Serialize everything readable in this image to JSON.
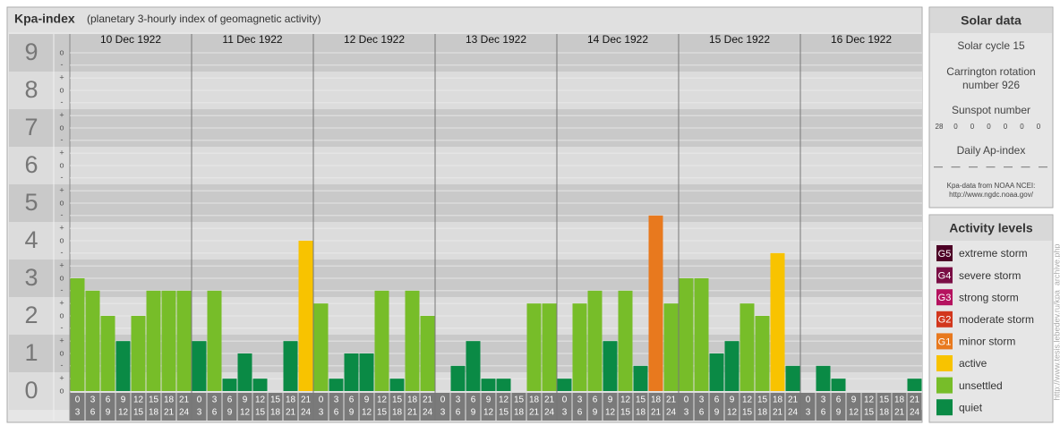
{
  "chart_data": {
    "type": "bar",
    "title": "Kpa-index",
    "subtitle": "(planetary 3-hourly index of geomagnetic activity)",
    "ylim": [
      0,
      9.5
    ],
    "yticks": [
      0,
      1,
      2,
      3,
      4,
      5,
      6,
      7,
      8,
      9
    ],
    "ysubticks": [
      {
        "value": 0,
        "label": "o"
      },
      {
        "value": 0.33,
        "label": "+"
      },
      {
        "value": 0.67,
        "label": "-"
      },
      {
        "value": 1,
        "label": "o"
      },
      {
        "value": 1.33,
        "label": "+"
      },
      {
        "value": 1.67,
        "label": "-"
      },
      {
        "value": 2,
        "label": "o"
      },
      {
        "value": 2.33,
        "label": "+"
      },
      {
        "value": 2.67,
        "label": "-"
      },
      {
        "value": 3,
        "label": "o"
      },
      {
        "value": 3.33,
        "label": "+"
      },
      {
        "value": 3.67,
        "label": "-"
      },
      {
        "value": 4,
        "label": "o"
      },
      {
        "value": 4.33,
        "label": "+"
      },
      {
        "value": 4.67,
        "label": "-"
      },
      {
        "value": 5,
        "label": "o"
      },
      {
        "value": 5.33,
        "label": "+"
      },
      {
        "value": 5.67,
        "label": "-"
      },
      {
        "value": 6,
        "label": "o"
      },
      {
        "value": 6.33,
        "label": "+"
      },
      {
        "value": 6.67,
        "label": "-"
      },
      {
        "value": 7,
        "label": "o"
      },
      {
        "value": 7.33,
        "label": "+"
      },
      {
        "value": 7.67,
        "label": "-"
      },
      {
        "value": 8,
        "label": "o"
      },
      {
        "value": 8.33,
        "label": "+"
      },
      {
        "value": 8.67,
        "label": "-"
      },
      {
        "value": 9,
        "label": "o"
      }
    ],
    "intervals": [
      [
        "0",
        "3"
      ],
      [
        "3",
        "6"
      ],
      [
        "6",
        "9"
      ],
      [
        "9",
        "12"
      ],
      [
        "12",
        "15"
      ],
      [
        "15",
        "18"
      ],
      [
        "18",
        "21"
      ],
      [
        "21",
        "24"
      ]
    ],
    "series": [
      {
        "name": "10 Dec 1922",
        "values": [
          3,
          2.67,
          2,
          1.33,
          2,
          2.67,
          2.67,
          2.67
        ],
        "colors": [
          "#77bd29",
          "#77bd29",
          "#77bd29",
          "#0a8a45",
          "#77bd29",
          "#77bd29",
          "#77bd29",
          "#77bd29"
        ]
      },
      {
        "name": "11 Dec 1922",
        "values": [
          1.33,
          2.67,
          0.33,
          1,
          0.33,
          0,
          1.33,
          4
        ],
        "colors": [
          "#0a8a45",
          "#77bd29",
          "#0a8a45",
          "#0a8a45",
          "#0a8a45",
          "#0a8a45",
          "#0a8a45",
          "#f8c300"
        ]
      },
      {
        "name": "12 Dec 1922",
        "values": [
          2.33,
          0.33,
          1,
          1,
          2.67,
          0.33,
          2.67,
          2
        ],
        "colors": [
          "#77bd29",
          "#0a8a45",
          "#0a8a45",
          "#0a8a45",
          "#77bd29",
          "#0a8a45",
          "#77bd29",
          "#77bd29"
        ]
      },
      {
        "name": "13 Dec 1922",
        "values": [
          0,
          0.67,
          1.33,
          0.33,
          0.33,
          0,
          2.33,
          2.33
        ],
        "colors": [
          "#0a8a45",
          "#0a8a45",
          "#0a8a45",
          "#0a8a45",
          "#0a8a45",
          "#0a8a45",
          "#77bd29",
          "#77bd29"
        ]
      },
      {
        "name": "14 Dec 1922",
        "values": [
          0.33,
          2.33,
          2.67,
          1.33,
          2.67,
          0.67,
          4.67,
          2.33
        ],
        "colors": [
          "#0a8a45",
          "#77bd29",
          "#77bd29",
          "#0a8a45",
          "#77bd29",
          "#0a8a45",
          "#e8791e",
          "#77bd29"
        ]
      },
      {
        "name": "15 Dec 1922",
        "values": [
          3,
          3,
          1,
          1.33,
          2.33,
          2,
          3.67,
          0.67
        ],
        "colors": [
          "#77bd29",
          "#77bd29",
          "#0a8a45",
          "#0a8a45",
          "#77bd29",
          "#77bd29",
          "#f8c300",
          "#0a8a45"
        ]
      },
      {
        "name": "16 Dec 1922",
        "values": [
          0,
          0.67,
          0.33,
          0,
          0,
          0,
          0,
          0.33
        ],
        "colors": [
          "#0a8a45",
          "#0a8a45",
          "#0a8a45",
          "#0a8a45",
          "#0a8a45",
          "#0a8a45",
          "#0a8a45",
          "#0a8a45"
        ]
      }
    ]
  },
  "solar": {
    "title": "Solar data",
    "cycle": "Solar cycle 15",
    "carrington": [
      "Carrington rotation",
      "number 926"
    ],
    "sunspot_label": "Sunspot number",
    "sunspot": [
      28,
      0,
      0,
      0,
      0,
      0,
      0
    ],
    "ap_label": "Daily Ap-index",
    "ap": [
      "—",
      "—",
      "—",
      "—",
      "—",
      "—",
      "—"
    ],
    "source": [
      "Kpa-data from NOAA NCEI:",
      "http://www.ngdc.noaa.gov/"
    ]
  },
  "levels": {
    "title": "Activity levels",
    "items": [
      {
        "badge": "G5",
        "name": "extreme storm",
        "color": "#4d0026"
      },
      {
        "badge": "G4",
        "name": "severe storm",
        "color": "#7a0e45"
      },
      {
        "badge": "G3",
        "name": "strong storm",
        "color": "#b5125f"
      },
      {
        "badge": "G2",
        "name": "moderate storm",
        "color": "#d2361c"
      },
      {
        "badge": "G1",
        "name": "minor storm",
        "color": "#e8791e"
      },
      {
        "name": "active",
        "color": "#f8c300"
      },
      {
        "name": "unsettled",
        "color": "#77bd29"
      },
      {
        "name": "quiet",
        "color": "#0a8a45"
      }
    ]
  },
  "credit": "http://www.tesis.lebedev.ru/kpa_archive.php"
}
